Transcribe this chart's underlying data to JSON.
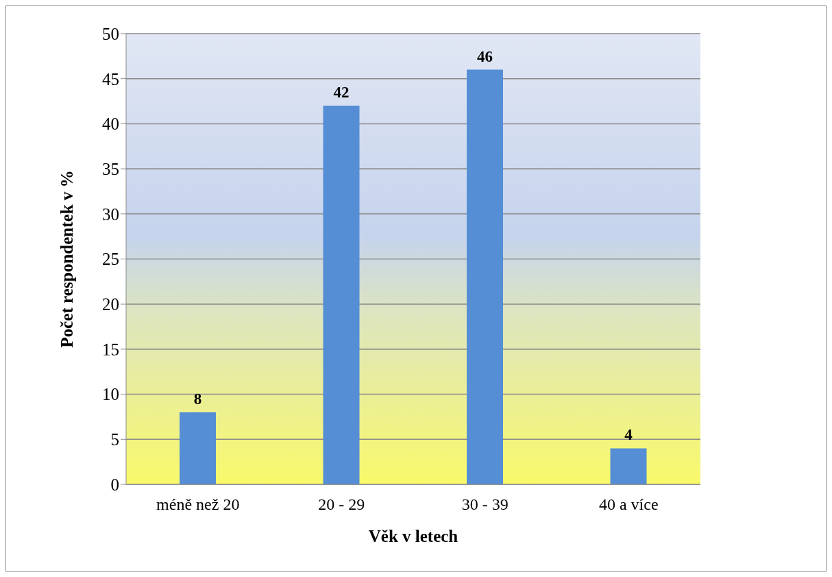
{
  "chart_data": {
    "type": "bar",
    "categories": [
      "méně než 20",
      "20 - 29",
      "30 - 39",
      "40 a více"
    ],
    "values": [
      8,
      42,
      46,
      4
    ],
    "color": "#558ed5",
    "xlabel": "Věk v letech",
    "ylabel": "Počet respondentek v %",
    "ylim": [
      0,
      50
    ],
    "yticks": [
      0,
      5,
      10,
      15,
      20,
      25,
      30,
      35,
      40,
      45,
      50
    ],
    "grid": "y",
    "data_labels": true
  }
}
